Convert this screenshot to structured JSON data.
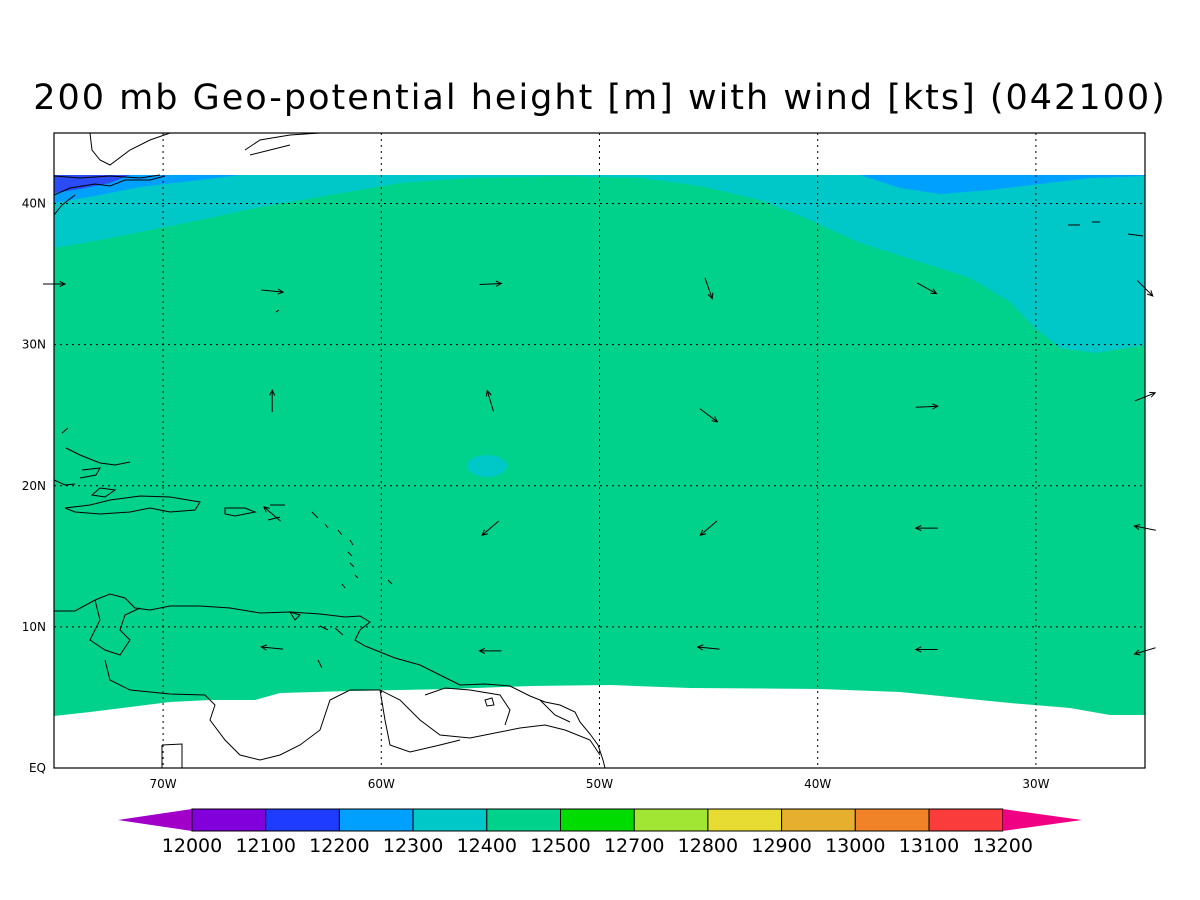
{
  "title": "200 mb Geo-potential height [m] with wind [kts] (042100)",
  "map": {
    "lon_range": [
      -75,
      -25
    ],
    "lat_range": [
      0,
      45
    ],
    "lat_ticks": [
      {
        "value": 40,
        "label": "40N"
      },
      {
        "value": 30,
        "label": "30N"
      },
      {
        "value": 20,
        "label": "20N"
      },
      {
        "value": 10,
        "label": "10N"
      },
      {
        "value": 0,
        "label": "EQ"
      }
    ],
    "lon_ticks": [
      {
        "value": -70,
        "label": "70W"
      },
      {
        "value": -60,
        "label": "60W"
      },
      {
        "value": -50,
        "label": "50W"
      },
      {
        "value": -40,
        "label": "40W"
      },
      {
        "value": -30,
        "label": "30W"
      }
    ],
    "grid": true,
    "fill_colors": {
      "h12200": "#2a4bf5",
      "h12300": "#00a0ff",
      "h12400": "#00c8c8",
      "h12500": "#00d28c"
    },
    "wind_vectors": [
      {
        "lon": -75,
        "lat": 34.3,
        "u": 1,
        "v": 0
      },
      {
        "lon": -65,
        "lat": 33.8,
        "u": 1,
        "v": -0.1
      },
      {
        "lon": -55,
        "lat": 34.3,
        "u": 1,
        "v": 0.05
      },
      {
        "lon": -45,
        "lat": 34,
        "u": 0.35,
        "v": -1
      },
      {
        "lon": -35,
        "lat": 34,
        "u": 0.9,
        "v": -0.5
      },
      {
        "lon": -25,
        "lat": 34,
        "u": 0.7,
        "v": -0.7
      },
      {
        "lon": -65,
        "lat": 26,
        "u": 0,
        "v": 1
      },
      {
        "lon": -55,
        "lat": 26,
        "u": -0.3,
        "v": 1
      },
      {
        "lon": -45,
        "lat": 25,
        "u": 0.8,
        "v": -0.6
      },
      {
        "lon": -35,
        "lat": 25.6,
        "u": 1,
        "v": 0.05
      },
      {
        "lon": -25,
        "lat": 26.3,
        "u": 1,
        "v": 0.4
      },
      {
        "lon": -65,
        "lat": 18,
        "u": -0.7,
        "v": 0.6
      },
      {
        "lon": -55,
        "lat": 17,
        "u": -0.7,
        "v": -0.6
      },
      {
        "lon": -45,
        "lat": 17,
        "u": -0.7,
        "v": -0.6
      },
      {
        "lon": -35,
        "lat": 17,
        "u": -1,
        "v": 0
      },
      {
        "lon": -25,
        "lat": 17,
        "u": -1,
        "v": 0.2
      },
      {
        "lon": -65,
        "lat": 8.5,
        "u": -1,
        "v": 0.1
      },
      {
        "lon": -55,
        "lat": 8.3,
        "u": -1,
        "v": 0
      },
      {
        "lon": -45,
        "lat": 8.5,
        "u": -1,
        "v": 0.1
      },
      {
        "lon": -35,
        "lat": 8.4,
        "u": -1,
        "v": 0
      },
      {
        "lon": -25,
        "lat": 8.3,
        "u": -1,
        "v": -0.3
      }
    ]
  },
  "colorbar": {
    "labels": [
      "12000",
      "12100",
      "12200",
      "12300",
      "12400",
      "12500",
      "12700",
      "12800",
      "12900",
      "13000",
      "13100",
      "13200"
    ],
    "colors": [
      "#a000c8",
      "#8200dc",
      "#1e3cff",
      "#00a0ff",
      "#00c8c8",
      "#00d28c",
      "#00dc00",
      "#a0e632",
      "#e6dc32",
      "#e6af2d",
      "#f08228",
      "#fa3c3c",
      "#f00082"
    ]
  }
}
